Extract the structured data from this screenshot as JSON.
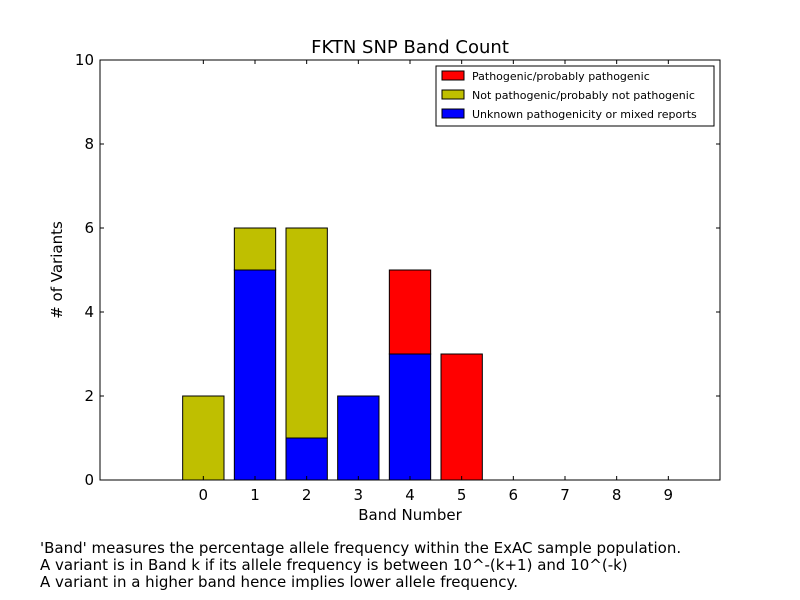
{
  "chart_data": {
    "type": "bar",
    "stacked": true,
    "title": "FKTN SNP Band Count",
    "xlabel": "Band Number",
    "ylabel": "# of Variants",
    "categories": [
      "0",
      "1",
      "2",
      "3",
      "4",
      "5",
      "6",
      "7",
      "8",
      "9"
    ],
    "ylim": [
      0,
      10
    ],
    "yticks": [
      "0",
      "2",
      "4",
      "6",
      "8",
      "10"
    ],
    "grid": false,
    "legend_position": "top-right",
    "series": [
      {
        "name": "Unknown pathogenicity or mixed reports",
        "color": "#0000ff",
        "values": [
          0,
          5,
          1,
          2,
          3,
          0,
          0,
          0,
          0,
          0
        ]
      },
      {
        "name": "Not pathogenic/probably not pathogenic",
        "color": "#bfbf00",
        "values": [
          2,
          1,
          5,
          0,
          0,
          0,
          0,
          0,
          0,
          0
        ]
      },
      {
        "name": "Pathogenic/probably pathogenic",
        "color": "#ff0000",
        "values": [
          0,
          0,
          0,
          0,
          2,
          3,
          0,
          0,
          0,
          0
        ]
      }
    ],
    "legend_order": [
      2,
      1,
      0
    ]
  },
  "caption": {
    "lines": [
      "'Band' measures the percentage allele frequency within the ExAC sample population.",
      "A variant is in Band k if its allele frequency is between 10^-(k+1) and 10^(-k)",
      "A variant in a higher band hence implies lower allele frequency."
    ]
  }
}
